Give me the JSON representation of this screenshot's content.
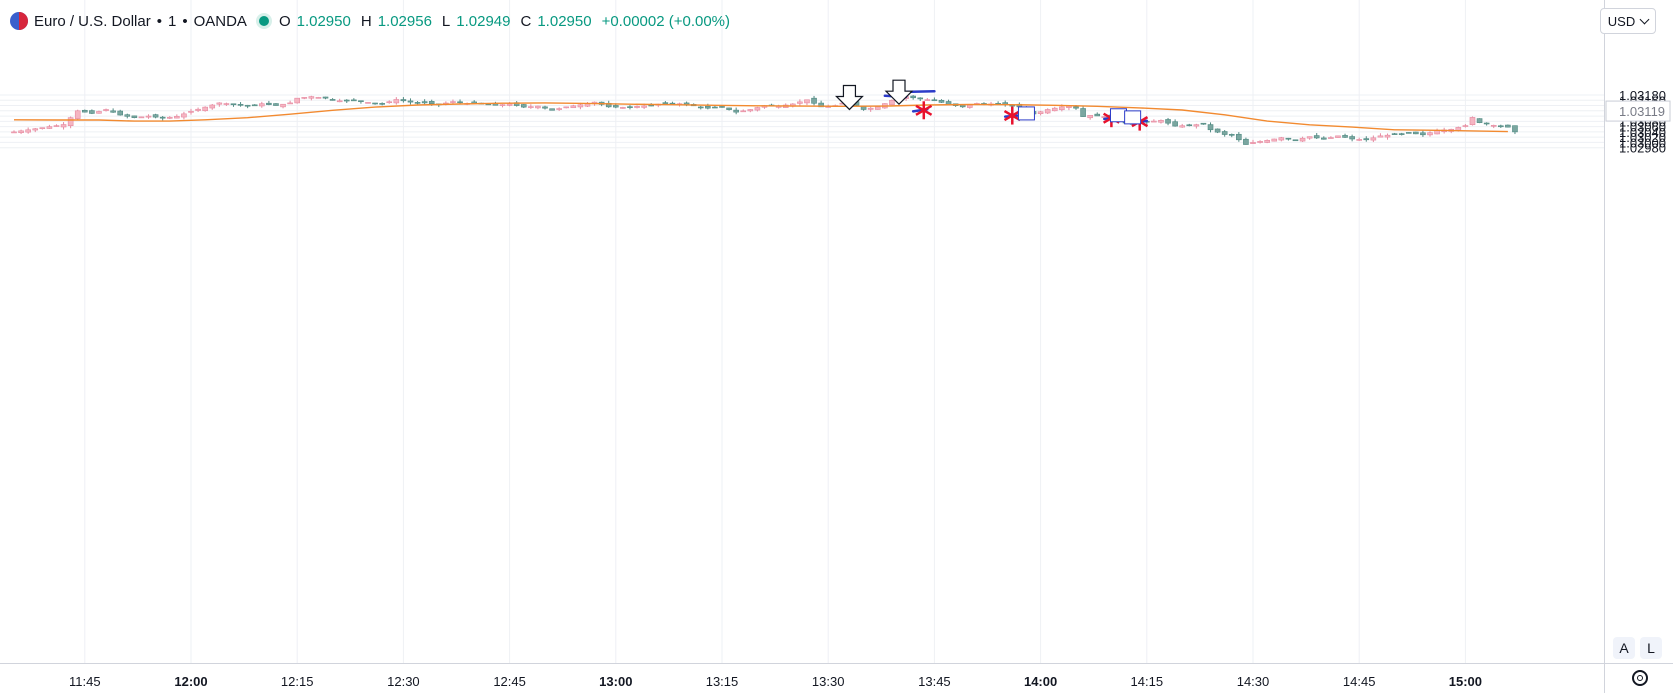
{
  "header": {
    "symbol": "Euro / U.S. Dollar",
    "sep1": "•",
    "interval": "1",
    "sep2": "•",
    "source": "OANDA",
    "o_label": "O",
    "o": "1.02950",
    "h_label": "H",
    "h": "1.02956",
    "l_label": "L",
    "l": "1.02949",
    "c_label": "C",
    "c": "1.02950",
    "change": "+0.00002 (+0.00%)"
  },
  "toolbar": {
    "currency": "USD",
    "auto_label": "A",
    "log_label": "L"
  },
  "chart_data": {
    "type": "candlestick",
    "y_ticks": [
      "1.03180",
      "1.03160",
      "1.03140",
      "1.03120",
      "1.03100",
      "1.03080",
      "1.03060",
      "1.03040",
      "1.03020",
      "1.03000",
      "1.02980"
    ],
    "y_tick_values": [
      1.0318,
      1.0316,
      1.0314,
      1.0312,
      1.031,
      1.0308,
      1.0306,
      1.0304,
      1.0302,
      1.03,
      1.0298
    ],
    "price_label": "1.03119",
    "price_label_value": 1.03119,
    "x_ticks": [
      {
        "label": "11:45",
        "min": -15,
        "bold": false
      },
      {
        "label": "12:00",
        "min": 0,
        "bold": true
      },
      {
        "label": "12:15",
        "min": 15,
        "bold": false
      },
      {
        "label": "12:30",
        "min": 30,
        "bold": false
      },
      {
        "label": "12:45",
        "min": 45,
        "bold": false
      },
      {
        "label": "13:00",
        "min": 60,
        "bold": true
      },
      {
        "label": "13:15",
        "min": 75,
        "bold": false
      },
      {
        "label": "13:30",
        "min": 90,
        "bold": false
      },
      {
        "label": "13:45",
        "min": 105,
        "bold": false
      },
      {
        "label": "14:00",
        "min": 120,
        "bold": true
      },
      {
        "label": "14:15",
        "min": 135,
        "bold": false
      },
      {
        "label": "14:30",
        "min": 150,
        "bold": false
      },
      {
        "label": "14:45",
        "min": 165,
        "bold": false
      },
      {
        "label": "15:00",
        "min": 180,
        "bold": true
      }
    ],
    "up_color": "#f5b5c2",
    "down_color": "#7aa6a0",
    "ma_color": "#f28a30",
    "ma_anchors": [
      [
        -25,
        1.03086
      ],
      [
        -19,
        1.03085
      ],
      [
        -13,
        1.03085
      ],
      [
        -8,
        1.03081
      ],
      [
        -3,
        1.03081
      ],
      [
        2,
        1.03086
      ],
      [
        8,
        1.03094
      ],
      [
        14,
        1.03107
      ],
      [
        20,
        1.03122
      ],
      [
        26,
        1.03134
      ],
      [
        32,
        1.03142
      ],
      [
        38,
        1.03146
      ],
      [
        44,
        1.03149
      ],
      [
        50,
        1.0315
      ],
      [
        56,
        1.03148
      ],
      [
        62,
        1.03145
      ],
      [
        68,
        1.03143
      ],
      [
        74,
        1.03141
      ],
      [
        80,
        1.03139
      ],
      [
        86,
        1.03138
      ],
      [
        92,
        1.03137
      ],
      [
        98,
        1.03138
      ],
      [
        104,
        1.03142
      ],
      [
        110,
        1.03144
      ],
      [
        116,
        1.03143
      ],
      [
        122,
        1.03141
      ],
      [
        128,
        1.03137
      ],
      [
        134,
        1.03131
      ],
      [
        140,
        1.03123
      ],
      [
        146,
        1.03105
      ],
      [
        152,
        1.03081
      ],
      [
        158,
        1.03067
      ],
      [
        164,
        1.03058
      ],
      [
        170,
        1.03048
      ],
      [
        176,
        1.03046
      ],
      [
        182,
        1.03043
      ],
      [
        186,
        1.03041
      ]
    ],
    "price_anchors": [
      [
        -25,
        1.0304
      ],
      [
        -22,
        1.03052
      ],
      [
        -18,
        1.03068
      ],
      [
        -16,
        1.0312
      ],
      [
        -14,
        1.0311
      ],
      [
        -12,
        1.03125
      ],
      [
        -10,
        1.03104
      ],
      [
        -8,
        1.03094
      ],
      [
        -6,
        1.031
      ],
      [
        -4,
        1.03092
      ],
      [
        -2,
        1.03099
      ],
      [
        0,
        1.03118
      ],
      [
        2,
        1.03134
      ],
      [
        4,
        1.0315
      ],
      [
        6,
        1.03145
      ],
      [
        8,
        1.03138
      ],
      [
        10,
        1.03147
      ],
      [
        12,
        1.0314
      ],
      [
        14,
        1.0315
      ],
      [
        15,
        1.03168
      ],
      [
        17,
        1.03174
      ],
      [
        19,
        1.03168
      ],
      [
        21,
        1.03158
      ],
      [
        23,
        1.0316
      ],
      [
        25,
        1.03152
      ],
      [
        27,
        1.03146
      ],
      [
        29,
        1.03163
      ],
      [
        31,
        1.03153
      ],
      [
        33,
        1.0315
      ],
      [
        35,
        1.03144
      ],
      [
        37,
        1.03155
      ],
      [
        39,
        1.03148
      ],
      [
        41,
        1.03146
      ],
      [
        43,
        1.03141
      ],
      [
        45,
        1.03146
      ],
      [
        47,
        1.03134
      ],
      [
        49,
        1.03138
      ],
      [
        51,
        1.03122
      ],
      [
        53,
        1.03135
      ],
      [
        55,
        1.03143
      ],
      [
        57,
        1.03153
      ],
      [
        59,
        1.03135
      ],
      [
        61,
        1.03133
      ],
      [
        63,
        1.03137
      ],
      [
        65,
        1.0314
      ],
      [
        67,
        1.03151
      ],
      [
        69,
        1.03147
      ],
      [
        71,
        1.03139
      ],
      [
        73,
        1.0313
      ],
      [
        75,
        1.03134
      ],
      [
        77,
        1.03115
      ],
      [
        79,
        1.03125
      ],
      [
        81,
        1.0314
      ],
      [
        83,
        1.03138
      ],
      [
        85,
        1.03146
      ],
      [
        87,
        1.03162
      ],
      [
        89,
        1.03135
      ],
      [
        91,
        1.0314
      ],
      [
        93,
        1.03158
      ],
      [
        95,
        1.03125
      ],
      [
        97,
        1.03135
      ],
      [
        99,
        1.0316
      ],
      [
        101,
        1.03174
      ],
      [
        103,
        1.03165
      ],
      [
        105,
        1.0316
      ],
      [
        107,
        1.03144
      ],
      [
        109,
        1.03135
      ],
      [
        111,
        1.03148
      ],
      [
        113,
        1.03146
      ],
      [
        115,
        1.03145
      ],
      [
        117,
        1.03135
      ],
      [
        119,
        1.03108
      ],
      [
        121,
        1.03125
      ],
      [
        123,
        1.03135
      ],
      [
        124,
        1.03138
      ],
      [
        125,
        1.0313
      ],
      [
        126,
        1.03098
      ],
      [
        127,
        1.03103
      ],
      [
        129,
        1.03098
      ],
      [
        131,
        1.03082
      ],
      [
        133,
        1.03072
      ],
      [
        135,
        1.03078
      ],
      [
        137,
        1.03084
      ],
      [
        139,
        1.03062
      ],
      [
        141,
        1.03065
      ],
      [
        143,
        1.0307
      ],
      [
        144,
        1.03048
      ],
      [
        146,
        1.0303
      ],
      [
        147,
        1.03028
      ],
      [
        148,
        1.0301
      ],
      [
        149,
        1.02992
      ],
      [
        150,
        1.03
      ],
      [
        152,
        1.03008
      ],
      [
        154,
        1.03018
      ],
      [
        156,
        1.0301
      ],
      [
        158,
        1.03022
      ],
      [
        160,
        1.03012
      ],
      [
        162,
        1.03025
      ],
      [
        164,
        1.03013
      ],
      [
        166,
        1.0301
      ],
      [
        168,
        1.03025
      ],
      [
        170,
        1.0303
      ],
      [
        172,
        1.03036
      ],
      [
        174,
        1.03029
      ],
      [
        176,
        1.03045
      ],
      [
        178,
        1.0305
      ],
      [
        180,
        1.03064
      ],
      [
        181,
        1.03095
      ],
      [
        182,
        1.03075
      ],
      [
        184,
        1.03065
      ],
      [
        186,
        1.03058
      ],
      [
        187,
        1.0304
      ]
    ],
    "markers": {
      "arrows": [
        [
          93,
          1.03163
        ],
        [
          100,
          1.03183
        ]
      ],
      "stars": [
        [
          103.5,
          1.03122
        ],
        [
          116,
          1.03102
        ],
        [
          130,
          1.03092
        ],
        [
          134,
          1.03079
        ]
      ],
      "boxes": [
        [
          118,
          1.03112
        ],
        [
          131,
          1.03105
        ],
        [
          133,
          1.03097
        ]
      ],
      "blue_lines": [
        [
          [
            98,
            1.03177
          ],
          [
            101,
            1.03173
          ]
        ],
        [
          [
            101,
            1.03192
          ],
          [
            105,
            1.03194
          ]
        ],
        [
          [
            102,
            1.03118
          ],
          [
            104,
            1.03126
          ]
        ],
        [
          [
            115,
            1.03098
          ],
          [
            118,
            1.03104
          ]
        ],
        [
          [
            129,
            1.03089
          ],
          [
            131,
            1.03096
          ]
        ],
        [
          [
            133,
            1.03075
          ],
          [
            135,
            1.03082
          ]
        ]
      ]
    }
  }
}
